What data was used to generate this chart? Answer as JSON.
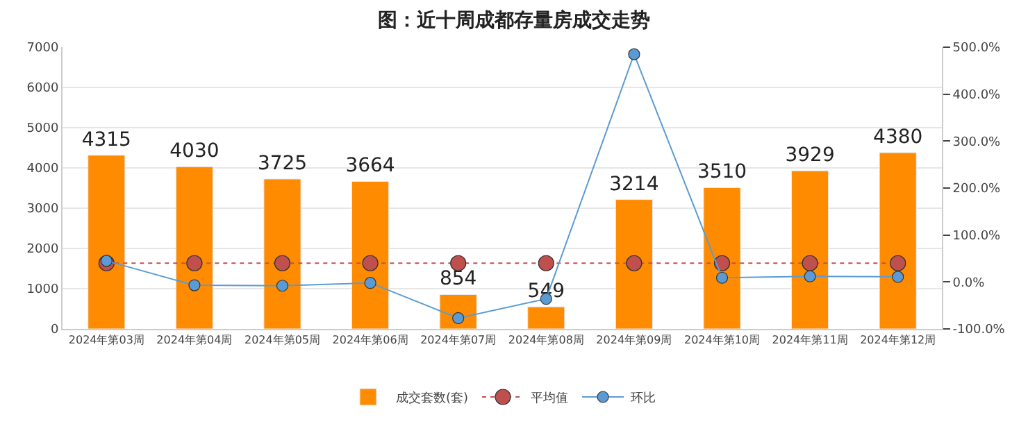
{
  "chart_data": {
    "type": "bar",
    "title": "图：近十周成都存量房成交走势",
    "categories": [
      "2024年第03周",
      "2024年第04周",
      "2024年第05周",
      "2024年第06周",
      "2024年第07周",
      "2024年第08周",
      "2024年第09周",
      "2024年第10周",
      "2024年第11周",
      "2024年第12周"
    ],
    "series": [
      {
        "name": "成交套数(套)",
        "color": "#ff8c00",
        "values": [
          4315,
          4030,
          3725,
          3664,
          854,
          549,
          3214,
          3510,
          3929,
          4380
        ],
        "data_labels": true
      },
      {
        "name": "平均值",
        "type": "line",
        "axis": "y2",
        "color": "#c0504d",
        "line_style": "dotted",
        "marker": "circle",
        "values": [
          40,
          40,
          40,
          40,
          40,
          40,
          40,
          40,
          40,
          40
        ]
      },
      {
        "name": "环比",
        "type": "line",
        "axis": "y2",
        "color": "#5b9bd5",
        "line_style": "solid",
        "marker": "circle",
        "values": [
          45,
          -7,
          -8,
          -2,
          -77,
          -36,
          485,
          9,
          12,
          11
        ]
      }
    ],
    "ylim": [
      0,
      7000
    ],
    "yticks": [
      0,
      1000,
      2000,
      3000,
      4000,
      5000,
      6000,
      7000
    ],
    "y2lim": [
      -100,
      500
    ],
    "y2ticks": [
      {
        "value": -100,
        "label": "-100.0%"
      },
      {
        "value": 0,
        "label": "0.0%"
      },
      {
        "value": 100,
        "label": "100.0%"
      },
      {
        "value": 200,
        "label": "200.0%"
      },
      {
        "value": 300,
        "label": "300.0%"
      },
      {
        "value": 400,
        "label": "400.0%"
      },
      {
        "value": 500,
        "label": "500.0%"
      }
    ],
    "grid": "y",
    "legend": "bottom"
  }
}
